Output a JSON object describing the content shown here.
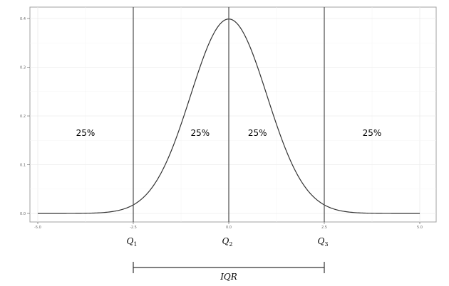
{
  "chart_data": {
    "type": "line",
    "title": "",
    "xlabel": "",
    "ylabel": "",
    "xlim": [
      -5.0,
      5.0
    ],
    "ylim": [
      0.0,
      0.4
    ],
    "grid": true,
    "x_ticks": [
      "-5.0",
      "-2.5",
      "0.0",
      "2.5",
      "5.0"
    ],
    "y_ticks": [
      "0.0",
      "0.1",
      "0.2",
      "0.3",
      "0.4"
    ],
    "curve": {
      "x": [
        -5.0,
        -4.5,
        -4.0,
        -3.5,
        -3.0,
        -2.5,
        -2.0,
        -1.5,
        -1.0,
        -0.5,
        0.0,
        0.5,
        1.0,
        1.5,
        2.0,
        2.5,
        3.0,
        3.5,
        4.0,
        4.5,
        5.0
      ],
      "y": [
        0.0,
        0.0,
        0.0001,
        0.0009,
        0.0044,
        0.0175,
        0.054,
        0.1295,
        0.242,
        0.3521,
        0.3989,
        0.3521,
        0.242,
        0.1295,
        0.054,
        0.0175,
        0.0044,
        0.0009,
        0.0001,
        0.0,
        0.0
      ]
    },
    "quartile_lines": [
      {
        "x": -2.5,
        "label": "Q",
        "sub": "1"
      },
      {
        "x": 0.0,
        "label": "Q",
        "sub": "2"
      },
      {
        "x": 2.5,
        "label": "Q",
        "sub": "3"
      }
    ],
    "region_labels": [
      {
        "x": -3.75,
        "y": 0.165,
        "text": "25%"
      },
      {
        "x": -0.75,
        "y": 0.165,
        "text": "25%"
      },
      {
        "x": 0.75,
        "y": 0.165,
        "text": "25%"
      },
      {
        "x": 3.75,
        "y": 0.165,
        "text": "25%"
      }
    ],
    "iqr": {
      "from": -2.5,
      "to": 2.5,
      "label": "IQR"
    }
  }
}
